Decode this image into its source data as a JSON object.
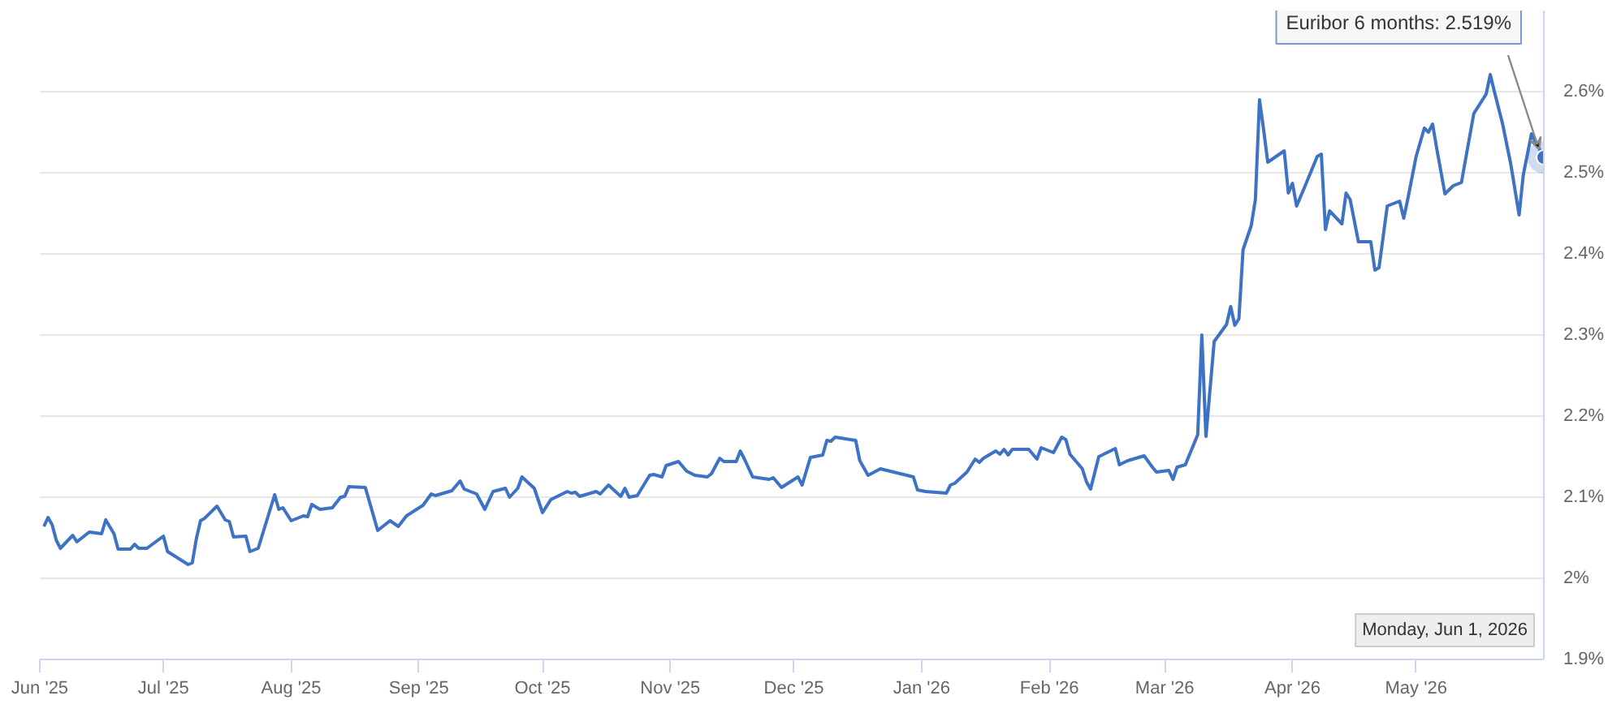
{
  "chart_data": {
    "type": "line",
    "x": [
      "2025-06-02",
      "2025-06-03",
      "2025-06-04",
      "2025-06-05",
      "2025-06-06",
      "2025-06-09",
      "2025-06-10",
      "2025-06-13",
      "2025-06-16",
      "2025-06-17",
      "2025-06-19",
      "2025-06-20",
      "2025-06-23",
      "2025-06-24",
      "2025-06-25",
      "2025-06-27",
      "2025-07-01",
      "2025-07-02",
      "2025-07-07",
      "2025-07-08",
      "2025-07-09",
      "2025-07-10",
      "2025-07-11",
      "2025-07-14",
      "2025-07-16",
      "2025-07-17",
      "2025-07-18",
      "2025-07-21",
      "2025-07-22",
      "2025-07-24",
      "2025-07-28",
      "2025-07-29",
      "2025-07-30",
      "2025-08-01",
      "2025-08-04",
      "2025-08-05",
      "2025-08-06",
      "2025-08-08",
      "2025-08-11",
      "2025-08-13",
      "2025-08-14",
      "2025-08-15",
      "2025-08-19",
      "2025-08-22",
      "2025-08-25",
      "2025-08-27",
      "2025-08-29",
      "2025-09-02",
      "2025-09-04",
      "2025-09-05",
      "2025-09-09",
      "2025-09-11",
      "2025-09-12",
      "2025-09-15",
      "2025-09-17",
      "2025-09-19",
      "2025-09-22",
      "2025-09-23",
      "2025-09-25",
      "2025-09-26",
      "2025-09-29",
      "2025-10-01",
      "2025-10-03",
      "2025-10-07",
      "2025-10-08",
      "2025-10-09",
      "2025-10-10",
      "2025-10-14",
      "2025-10-15",
      "2025-10-17",
      "2025-10-20",
      "2025-10-21",
      "2025-10-22",
      "2025-10-24",
      "2025-10-27",
      "2025-10-28",
      "2025-10-30",
      "2025-10-31",
      "2025-11-03",
      "2025-11-05",
      "2025-11-07",
      "2025-11-10",
      "2025-11-11",
      "2025-11-13",
      "2025-11-14",
      "2025-11-17",
      "2025-11-18",
      "2025-11-19",
      "2025-11-21",
      "2025-11-25",
      "2025-11-26",
      "2025-11-28",
      "2025-12-02",
      "2025-12-03",
      "2025-12-05",
      "2025-12-08",
      "2025-12-09",
      "2025-12-10",
      "2025-12-11",
      "2025-12-16",
      "2025-12-17",
      "2025-12-19",
      "2025-12-22",
      "2025-12-30",
      "2025-12-31",
      "2026-01-02",
      "2026-01-07",
      "2026-01-08",
      "2026-01-09",
      "2026-01-12",
      "2026-01-14",
      "2026-01-15",
      "2026-01-16",
      "2026-01-19",
      "2026-01-20",
      "2026-01-21",
      "2026-01-22",
      "2026-01-23",
      "2026-01-27",
      "2026-01-29",
      "2026-01-30",
      "2026-02-02",
      "2026-02-04",
      "2026-02-05",
      "2026-02-06",
      "2026-02-09",
      "2026-02-10",
      "2026-02-11",
      "2026-02-13",
      "2026-02-17",
      "2026-02-18",
      "2026-02-20",
      "2026-02-24",
      "2026-02-26",
      "2026-02-27",
      "2026-03-02",
      "2026-03-03",
      "2026-03-04",
      "2026-03-06",
      "2026-03-09",
      "2026-03-10",
      "2026-03-11",
      "2026-03-13",
      "2026-03-16",
      "2026-03-17",
      "2026-03-18",
      "2026-03-19",
      "2026-03-20",
      "2026-03-22",
      "2026-03-23",
      "2026-03-24",
      "2026-03-25",
      "2026-03-26",
      "2026-03-28",
      "2026-03-30",
      "2026-03-31",
      "2026-04-01",
      "2026-04-02",
      "2026-04-04",
      "2026-04-07",
      "2026-04-08",
      "2026-04-09",
      "2026-04-10",
      "2026-04-13",
      "2026-04-14",
      "2026-04-15",
      "2026-04-17",
      "2026-04-20",
      "2026-04-21",
      "2026-04-22",
      "2026-04-24",
      "2026-04-25",
      "2026-04-27",
      "2026-04-28",
      "2026-04-29",
      "2026-05-01",
      "2026-05-03",
      "2026-05-04",
      "2026-05-05",
      "2026-05-06",
      "2026-05-08",
      "2026-05-10",
      "2026-05-12",
      "2026-05-15",
      "2026-05-18",
      "2026-05-19",
      "2026-05-20",
      "2026-05-22",
      "2026-05-24",
      "2026-05-26",
      "2026-05-27",
      "2026-05-29",
      "2026-06-01"
    ],
    "series": [
      {
        "color": "#3d72c4",
        "values": [
          2.064,
          2.075,
          2.066,
          2.047,
          2.037,
          2.053,
          2.045,
          2.057,
          2.055,
          2.072,
          2.055,
          2.036,
          2.036,
          2.042,
          2.037,
          2.037,
          2.052,
          2.033,
          2.017,
          2.019,
          2.049,
          2.071,
          2.074,
          2.089,
          2.072,
          2.07,
          2.051,
          2.052,
          2.033,
          2.037,
          2.103,
          2.085,
          2.087,
          2.071,
          2.077,
          2.076,
          2.091,
          2.085,
          2.087,
          2.1,
          2.101,
          2.113,
          2.112,
          2.059,
          2.071,
          2.064,
          2.077,
          2.09,
          2.104,
          2.102,
          2.108,
          2.12,
          2.11,
          2.104,
          2.085,
          2.107,
          2.111,
          2.1,
          2.111,
          2.125,
          2.111,
          2.081,
          2.097,
          2.107,
          2.105,
          2.106,
          2.101,
          2.107,
          2.104,
          2.115,
          2.101,
          2.111,
          2.1,
          2.102,
          2.127,
          2.128,
          2.125,
          2.139,
          2.144,
          2.132,
          2.127,
          2.125,
          2.129,
          2.148,
          2.144,
          2.144,
          2.157,
          2.147,
          2.125,
          2.122,
          2.124,
          2.112,
          2.125,
          2.115,
          2.149,
          2.152,
          2.17,
          2.169,
          2.174,
          2.17,
          2.145,
          2.127,
          2.135,
          2.125,
          2.109,
          2.107,
          2.105,
          2.115,
          2.117,
          2.131,
          2.147,
          2.143,
          2.148,
          2.157,
          2.153,
          2.159,
          2.152,
          2.159,
          2.159,
          2.147,
          2.161,
          2.155,
          2.174,
          2.171,
          2.153,
          2.135,
          2.119,
          2.11,
          2.15,
          2.16,
          2.14,
          2.145,
          2.151,
          2.137,
          2.131,
          2.133,
          2.122,
          2.137,
          2.14,
          2.177,
          2.3,
          2.175,
          2.292,
          2.313,
          2.335,
          2.312,
          2.32,
          2.405,
          2.435,
          2.467,
          2.59,
          2.553,
          2.513,
          2.52,
          2.527,
          2.475,
          2.487,
          2.459,
          2.483,
          2.52,
          2.523,
          2.43,
          2.453,
          2.437,
          2.475,
          2.467,
          2.415,
          2.415,
          2.38,
          2.383,
          2.459,
          2.461,
          2.465,
          2.444,
          2.468,
          2.52,
          2.555,
          2.55,
          2.56,
          2.53,
          2.474,
          2.484,
          2.488,
          2.573,
          2.597,
          2.621,
          2.6,
          2.56,
          2.51,
          2.448,
          2.497,
          2.548,
          2.519
        ]
      }
    ],
    "xlim": [
      "2025-06-01",
      "2026-06-01"
    ],
    "xticks": [
      {
        "value": "2025-06-01",
        "label": "Jun '25"
      },
      {
        "value": "2025-07-01",
        "label": "Jul '25"
      },
      {
        "value": "2025-08-01",
        "label": "Aug '25"
      },
      {
        "value": "2025-09-01",
        "label": "Sep '25"
      },
      {
        "value": "2025-10-01",
        "label": "Oct '25"
      },
      {
        "value": "2025-11-01",
        "label": "Nov '25"
      },
      {
        "value": "2025-12-01",
        "label": "Dec '25"
      },
      {
        "value": "2026-01-01",
        "label": "Jan '26"
      },
      {
        "value": "2026-02-01",
        "label": "Feb '26"
      },
      {
        "value": "2026-03-01",
        "label": "Mar '26"
      },
      {
        "value": "2026-04-01",
        "label": "Apr '26"
      },
      {
        "value": "2026-05-01",
        "label": "May '26"
      }
    ],
    "ylim": [
      1.9,
      2.7
    ],
    "yticks": [
      {
        "value": 1.9,
        "label": "1.9%"
      },
      {
        "value": 2.0,
        "label": "2%"
      },
      {
        "value": 2.1,
        "label": "2.1%"
      },
      {
        "value": 2.2,
        "label": "2.2%"
      },
      {
        "value": 2.3,
        "label": "2.3%"
      },
      {
        "value": 2.4,
        "label": "2.4%"
      },
      {
        "value": 2.5,
        "label": "2.5%"
      },
      {
        "value": 2.6,
        "label": "2.6%"
      }
    ],
    "grid": "y",
    "annotations": [
      {
        "text": "Euribor 6 months: 2.519%",
        "x": "2026-06-01",
        "y": 2.519
      },
      "Monday, Jun 1, 2026"
    ]
  }
}
